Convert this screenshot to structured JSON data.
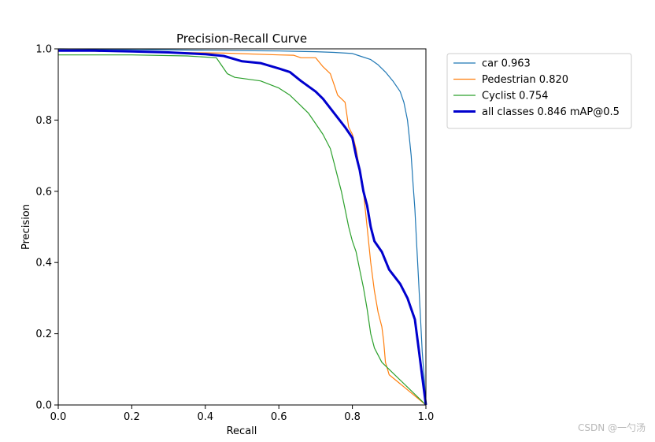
{
  "chart_data": {
    "type": "line",
    "title": "Precision-Recall Curve",
    "xlabel": "Recall",
    "ylabel": "Precision",
    "xlim": [
      0,
      1
    ],
    "ylim": [
      0,
      1
    ],
    "xticks": [
      "0.0",
      "0.2",
      "0.4",
      "0.6",
      "0.8",
      "1.0"
    ],
    "yticks": [
      "0.0",
      "0.2",
      "0.4",
      "0.6",
      "0.8",
      "1.0"
    ],
    "grid": false,
    "legend_position": "outside-top-right",
    "series": [
      {
        "name": "car 0.963",
        "color": "#1f77b4",
        "width": 1.2,
        "points": [
          [
            0,
            1.0
          ],
          [
            0.2,
            0.998
          ],
          [
            0.4,
            0.996
          ],
          [
            0.5,
            0.995
          ],
          [
            0.6,
            0.994
          ],
          [
            0.7,
            0.992
          ],
          [
            0.75,
            0.99
          ],
          [
            0.8,
            0.987
          ],
          [
            0.82,
            0.98
          ],
          [
            0.85,
            0.97
          ],
          [
            0.87,
            0.955
          ],
          [
            0.89,
            0.935
          ],
          [
            0.91,
            0.91
          ],
          [
            0.93,
            0.88
          ],
          [
            0.94,
            0.85
          ],
          [
            0.95,
            0.8
          ],
          [
            0.955,
            0.75
          ],
          [
            0.96,
            0.7
          ],
          [
            0.965,
            0.62
          ],
          [
            0.97,
            0.55
          ],
          [
            0.975,
            0.45
          ],
          [
            0.98,
            0.35
          ],
          [
            0.985,
            0.25
          ],
          [
            0.99,
            0.15
          ],
          [
            0.995,
            0.08
          ],
          [
            1.0,
            0.0
          ]
        ]
      },
      {
        "name": "Pedestrian 0.820",
        "color": "#ff7f0e",
        "width": 1.2,
        "points": [
          [
            0,
            0.995
          ],
          [
            0.3,
            0.99
          ],
          [
            0.45,
            0.988
          ],
          [
            0.6,
            0.983
          ],
          [
            0.64,
            0.982
          ],
          [
            0.66,
            0.975
          ],
          [
            0.7,
            0.975
          ],
          [
            0.72,
            0.95
          ],
          [
            0.74,
            0.93
          ],
          [
            0.75,
            0.9
          ],
          [
            0.76,
            0.87
          ],
          [
            0.78,
            0.85
          ],
          [
            0.79,
            0.78
          ],
          [
            0.8,
            0.76
          ],
          [
            0.81,
            0.72
          ],
          [
            0.82,
            0.66
          ],
          [
            0.83,
            0.6
          ],
          [
            0.84,
            0.5
          ],
          [
            0.845,
            0.45
          ],
          [
            0.85,
            0.4
          ],
          [
            0.86,
            0.32
          ],
          [
            0.87,
            0.26
          ],
          [
            0.88,
            0.22
          ],
          [
            0.885,
            0.18
          ],
          [
            0.89,
            0.12
          ],
          [
            0.9,
            0.085
          ],
          [
            1.0,
            0.0
          ]
        ]
      },
      {
        "name": "Cyclist 0.754",
        "color": "#2ca02c",
        "width": 1.2,
        "points": [
          [
            0,
            0.983
          ],
          [
            0.2,
            0.983
          ],
          [
            0.35,
            0.98
          ],
          [
            0.43,
            0.975
          ],
          [
            0.44,
            0.96
          ],
          [
            0.46,
            0.93
          ],
          [
            0.48,
            0.92
          ],
          [
            0.55,
            0.91
          ],
          [
            0.6,
            0.89
          ],
          [
            0.63,
            0.87
          ],
          [
            0.65,
            0.85
          ],
          [
            0.68,
            0.82
          ],
          [
            0.7,
            0.79
          ],
          [
            0.72,
            0.76
          ],
          [
            0.74,
            0.72
          ],
          [
            0.75,
            0.68
          ],
          [
            0.76,
            0.64
          ],
          [
            0.77,
            0.6
          ],
          [
            0.78,
            0.55
          ],
          [
            0.79,
            0.5
          ],
          [
            0.8,
            0.46
          ],
          [
            0.81,
            0.43
          ],
          [
            0.82,
            0.38
          ],
          [
            0.83,
            0.33
          ],
          [
            0.84,
            0.27
          ],
          [
            0.85,
            0.2
          ],
          [
            0.86,
            0.16
          ],
          [
            0.88,
            0.12
          ],
          [
            0.9,
            0.1
          ],
          [
            1.0,
            0.0
          ]
        ]
      },
      {
        "name": "all classes 0.846 mAP@0.5",
        "color": "#0000cd",
        "width": 3,
        "points": [
          [
            0,
            0.995
          ],
          [
            0.1,
            0.995
          ],
          [
            0.2,
            0.993
          ],
          [
            0.3,
            0.99
          ],
          [
            0.4,
            0.985
          ],
          [
            0.45,
            0.98
          ],
          [
            0.5,
            0.965
          ],
          [
            0.55,
            0.96
          ],
          [
            0.6,
            0.945
          ],
          [
            0.63,
            0.935
          ],
          [
            0.66,
            0.91
          ],
          [
            0.7,
            0.88
          ],
          [
            0.72,
            0.86
          ],
          [
            0.75,
            0.82
          ],
          [
            0.78,
            0.78
          ],
          [
            0.8,
            0.75
          ],
          [
            0.81,
            0.7
          ],
          [
            0.82,
            0.66
          ],
          [
            0.83,
            0.6
          ],
          [
            0.84,
            0.56
          ],
          [
            0.85,
            0.5
          ],
          [
            0.86,
            0.46
          ],
          [
            0.88,
            0.43
          ],
          [
            0.9,
            0.38
          ],
          [
            0.93,
            0.34
          ],
          [
            0.95,
            0.3
          ],
          [
            0.97,
            0.24
          ],
          [
            0.98,
            0.16
          ],
          [
            0.99,
            0.08
          ],
          [
            1.0,
            0.0
          ]
        ]
      }
    ]
  },
  "watermark": "CSDN @一勺汤"
}
